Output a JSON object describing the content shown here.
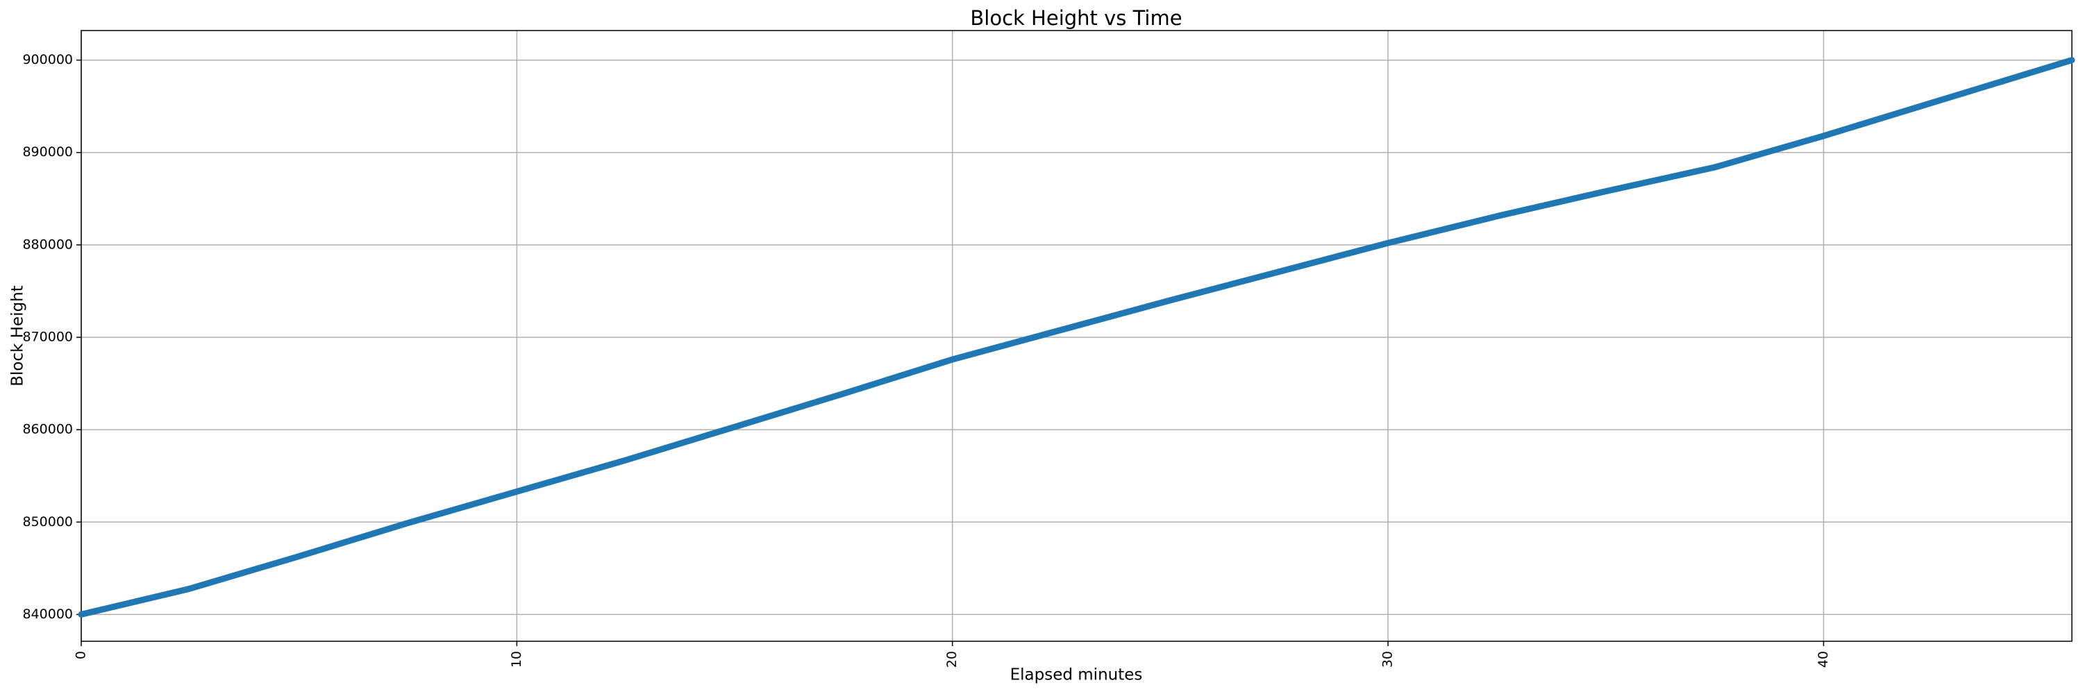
{
  "chart_data": {
    "type": "line",
    "title": "Block Height vs Time",
    "x_label": "Elapsed minutes",
    "y_label": "Block Height",
    "x": [
      0,
      2.5,
      5,
      7.5,
      10,
      12.5,
      15,
      17.5,
      20,
      22.5,
      25,
      27.5,
      30,
      32.5,
      35,
      37.5,
      40,
      42.5,
      45.7
    ],
    "series": [
      {
        "color": "#1f77b4",
        "values": [
          840000,
          842800,
          846300,
          849900,
          853300,
          856700,
          860300,
          863900,
          867600,
          870800,
          874000,
          877100,
          880200,
          883100,
          885800,
          888400,
          891800,
          895400,
          900000
        ]
      }
    ],
    "xlim": [
      0,
      45.7
    ],
    "xticks": [
      0,
      10,
      20,
      30,
      40
    ],
    "ylim": [
      837100,
      903200
    ],
    "yticks": [
      840000,
      850000,
      860000,
      870000,
      880000,
      890000,
      900000
    ],
    "grid": true
  }
}
